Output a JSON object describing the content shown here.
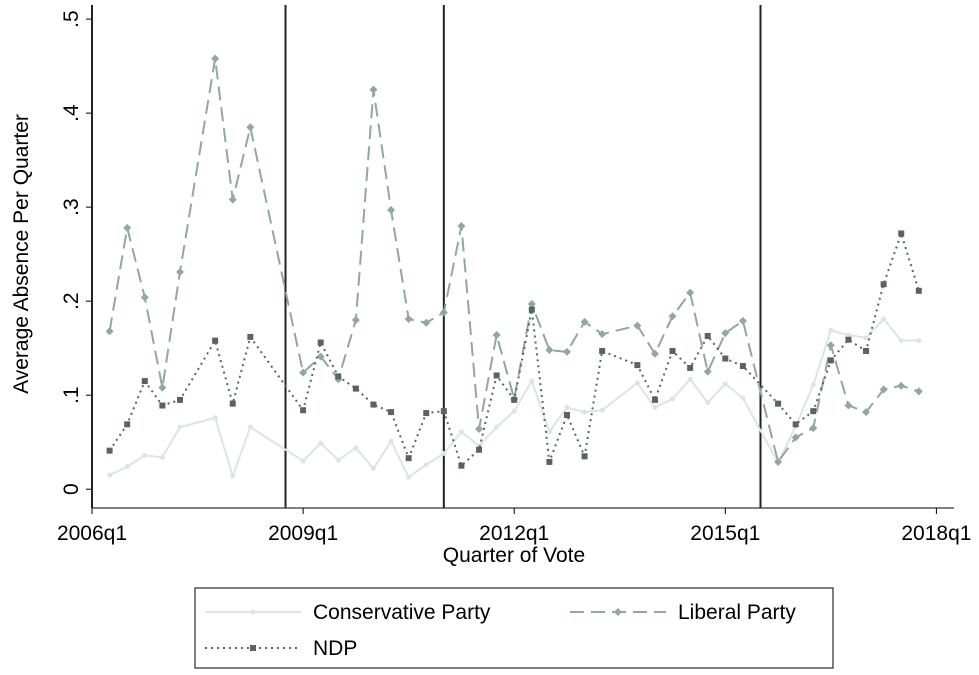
{
  "chart_data": {
    "type": "line",
    "xlabel": "Quarter of Vote",
    "ylabel": "Average Absence Per Quarter",
    "x": [
      "2006q2",
      "2006q3",
      "2006q4",
      "2007q1",
      "2007q2",
      "2007q4",
      "2008q1",
      "2008q2",
      "2009q1",
      "2009q2",
      "2009q3",
      "2009q4",
      "2010q1",
      "2010q2",
      "2010q3",
      "2010q4",
      "2011q1",
      "2011q2",
      "2011q3",
      "2011q4",
      "2012q1",
      "2012q2",
      "2012q3",
      "2012q4",
      "2013q1",
      "2013q2",
      "2013q4",
      "2014q1",
      "2014q2",
      "2014q3",
      "2014q4",
      "2015q1",
      "2015q2",
      "2015q4",
      "2016q1",
      "2016q2",
      "2016q3",
      "2016q4",
      "2017q1",
      "2017q2",
      "2017q3",
      "2017q4"
    ],
    "series": [
      {
        "name": "Conservative Party",
        "color": "#dde4e2",
        "marker": "circle",
        "dash": "solid",
        "values": [
          0.015,
          0.024,
          0.036,
          0.034,
          0.066,
          0.076,
          0.014,
          0.066,
          0.03,
          0.049,
          0.031,
          0.044,
          0.022,
          0.051,
          0.013,
          0.026,
          0.038,
          0.061,
          0.046,
          0.066,
          0.083,
          0.115,
          0.061,
          0.087,
          0.082,
          0.084,
          0.113,
          0.087,
          0.096,
          0.117,
          0.092,
          0.112,
          0.097,
          0.028,
          0.067,
          0.111,
          0.169,
          0.164,
          0.161,
          0.181,
          0.158,
          0.158
        ]
      },
      {
        "name": "Liberal Party",
        "color": "#8fa8a0",
        "marker": "diamond",
        "dash": "long",
        "values": [
          0.168,
          0.278,
          0.204,
          0.108,
          0.231,
          0.458,
          0.308,
          0.385,
          0.124,
          0.141,
          0.117,
          0.18,
          0.425,
          0.297,
          0.181,
          0.177,
          0.188,
          0.28,
          0.064,
          0.164,
          0.096,
          0.197,
          0.148,
          0.146,
          0.178,
          0.165,
          0.174,
          0.144,
          0.184,
          0.209,
          0.125,
          0.166,
          0.179,
          0.029,
          0.055,
          0.065,
          0.153,
          0.089,
          0.082,
          0.106,
          0.11,
          0.104
        ]
      },
      {
        "name": "NDP",
        "color": "#56665f",
        "marker": "square",
        "dash": "dot",
        "values": [
          0.041,
          0.069,
          0.115,
          0.089,
          0.095,
          0.158,
          0.091,
          0.162,
          0.084,
          0.156,
          0.12,
          0.107,
          0.09,
          0.082,
          0.033,
          0.081,
          0.083,
          0.025,
          0.042,
          0.121,
          0.095,
          0.191,
          0.029,
          0.079,
          0.035,
          0.147,
          0.132,
          0.095,
          0.147,
          0.129,
          0.163,
          0.139,
          0.131,
          0.091,
          0.069,
          0.083,
          0.137,
          0.159,
          0.147,
          0.218,
          0.272,
          0.211
        ]
      }
    ],
    "xlim": [
      "2006q1",
      "2018q2"
    ],
    "xticks": [
      "2006q1",
      "2009q1",
      "2012q1",
      "2015q1",
      "2018q1"
    ],
    "vlines": [
      "2006q1",
      "2008q4",
      "2011q1",
      "2015q3"
    ],
    "ylim": [
      -0.02,
      0.515
    ],
    "yticks": [
      0,
      {
        "value": 0.1,
        "label": ".1"
      },
      {
        "value": 0.2,
        "label": ".2"
      },
      {
        "value": 0.3,
        "label": ".3"
      },
      {
        "value": 0.4,
        "label": ".4"
      },
      {
        "value": 0.5,
        "label": ".5"
      }
    ],
    "legend": "bottom"
  }
}
